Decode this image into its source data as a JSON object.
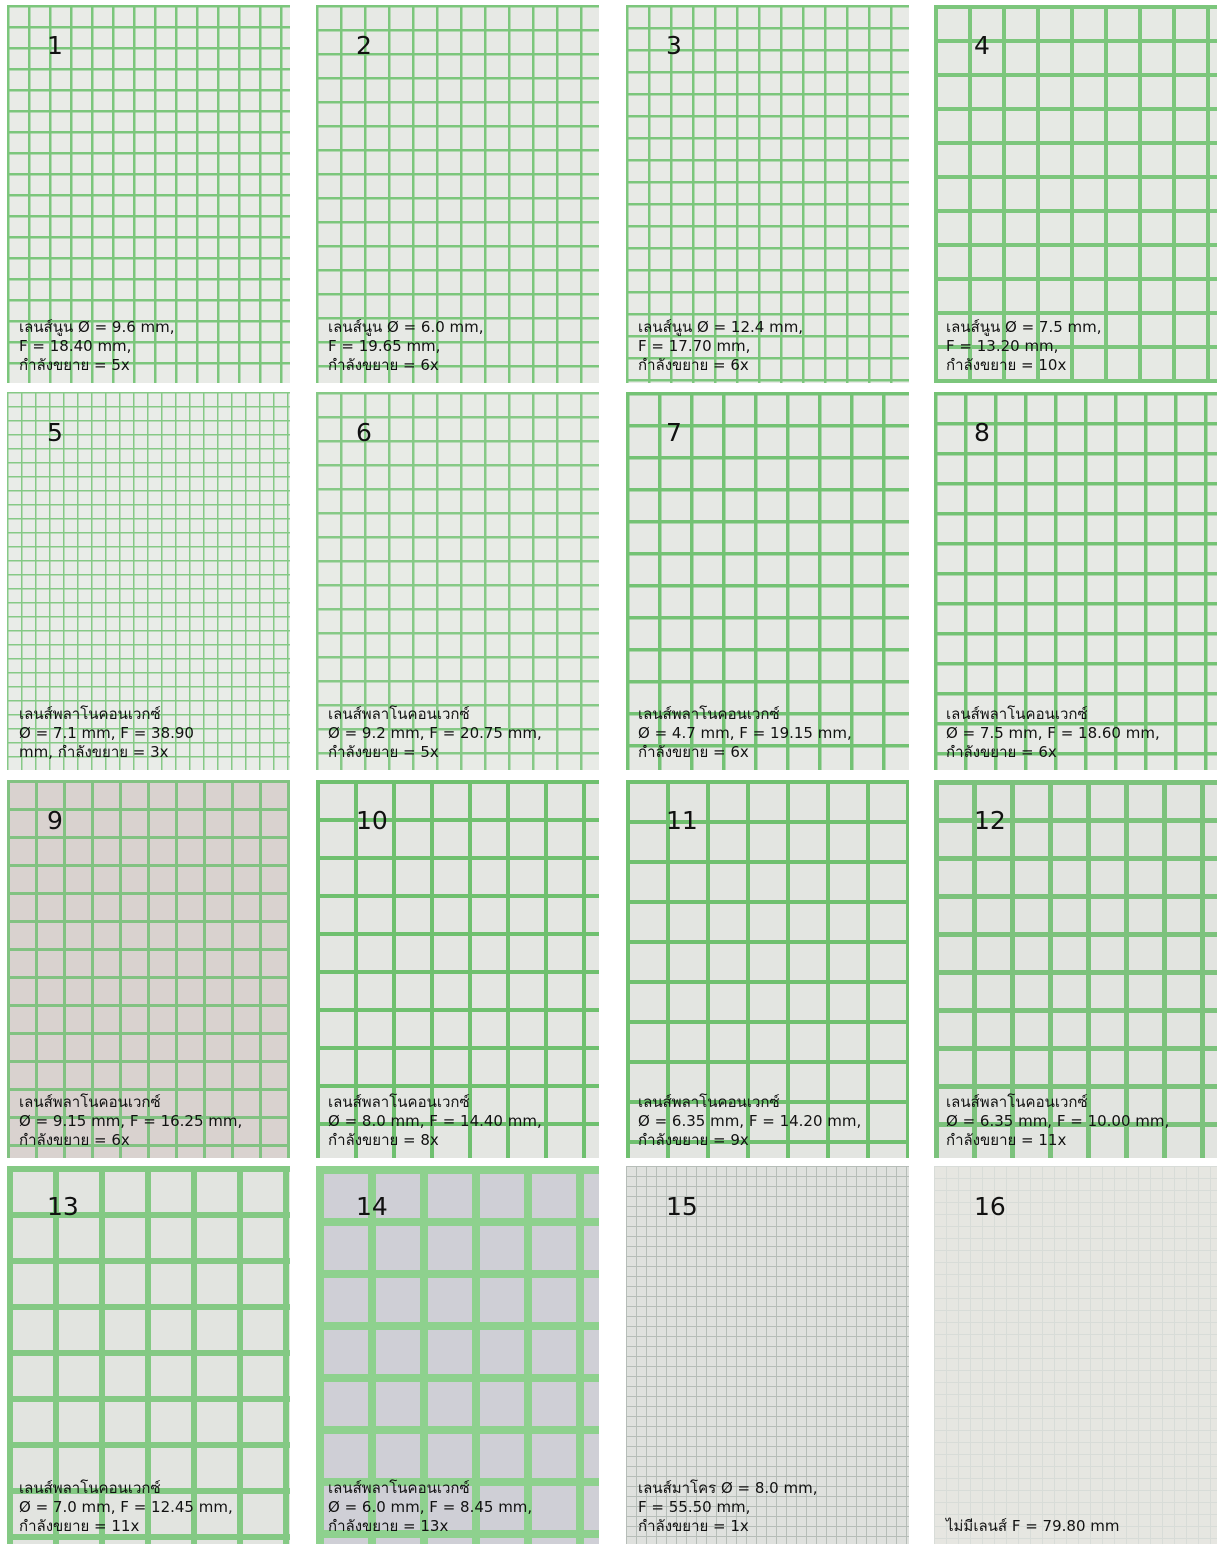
{
  "panels": [
    {
      "number": "1",
      "caption": [
        "เลนส์นูน Ø = 9.6 mm,",
        "F = 18.40 mm,",
        "กำลังขยาย = 5x"
      ]
    },
    {
      "number": "2",
      "caption": [
        "เลนส์นูน Ø = 6.0 mm,",
        "F = 19.65 mm,",
        "กำลังขยาย = 6x"
      ]
    },
    {
      "number": "3",
      "caption": [
        "เลนส์นูน Ø = 12.4 mm,",
        "F = 17.70 mm,",
        "กำลังขยาย = 6x"
      ]
    },
    {
      "number": "4",
      "caption": [
        "เลนส์นูน Ø = 7.5 mm,",
        "F = 13.20 mm,",
        "กำลังขยาย = 10x"
      ]
    },
    {
      "number": "5",
      "caption": [
        "เลนส์พลาโนคอนเวกซ์",
        "Ø = 7.1 mm, F = 38.90",
        "mm, กำลังขยาย = 3x"
      ]
    },
    {
      "number": "6",
      "caption": [
        "เลนส์พลาโนคอนเวกซ์",
        "Ø = 9.2 mm, F = 20.75 mm,",
        "กำลังขยาย = 5x"
      ]
    },
    {
      "number": "7",
      "caption": [
        "เลนส์พลาโนคอนเวกซ์",
        "Ø = 4.7 mm, F = 19.15 mm,",
        "กำลังขยาย = 6x"
      ]
    },
    {
      "number": "8",
      "caption": [
        "เลนส์พลาโนคอนเวกซ์",
        "Ø = 7.5 mm, F = 18.60 mm,",
        "กำลังขยาย = 6x"
      ]
    },
    {
      "number": "9",
      "caption": [
        "เลนส์พลาโนคอนเวกซ์",
        "Ø = 9.15 mm, F = 16.25 mm,",
        "กำลังขยาย = 6x"
      ]
    },
    {
      "number": "10",
      "caption": [
        "เลนส์พลาโนคอนเวกซ์",
        "Ø = 8.0 mm, F = 14.40 mm,",
        "กำลังขยาย = 8x"
      ]
    },
    {
      "number": "11",
      "caption": [
        "เลนส์พลาโนคอนเวกซ์",
        "Ø = 6.35 mm, F = 14.20 mm,",
        "กำลังขยาย = 9x"
      ]
    },
    {
      "number": "12",
      "caption": [
        "เลนส์พลาโนคอนเวกซ์",
        "Ø = 6.35 mm, F = 10.00 mm,",
        "กำลังขยาย = 11x"
      ]
    },
    {
      "number": "13",
      "caption": [
        "เลนส์พลาโนคอนเวกซ์",
        "Ø = 7.0 mm, F = 12.45 mm,",
        "กำลังขยาย = 11x"
      ]
    },
    {
      "number": "14",
      "caption": [
        "เลนส์พลาโนคอนเวกซ์",
        "Ø = 6.0 mm, F = 8.45 mm,",
        "กำลังขยาย = 13x"
      ]
    },
    {
      "number": "15",
      "caption": [
        "เลนส์มาโคร Ø = 8.0 mm,",
        "F = 55.50 mm,",
        "กำลังขยาย = 1x"
      ]
    },
    {
      "number": "16",
      "caption": [
        "ไม่มีเลนส์  F = 79.80 mm"
      ]
    }
  ]
}
